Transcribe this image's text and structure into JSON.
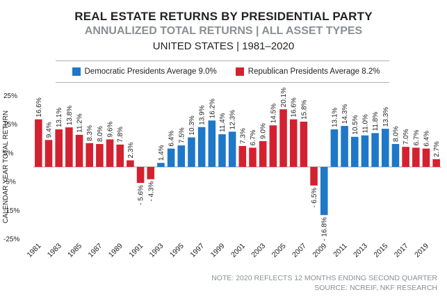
{
  "chart_data": {
    "type": "bar",
    "title": "REAL ESTATE RETURNS BY PRESIDENTIAL PARTY",
    "subtitle": "ANNUALIZED TOTAL RETURNS | ALL ASSET TYPES",
    "subtitle2": "UNITED STATES | 1981–2020",
    "ylabel": "CALENDAR YEAR TOTAL RETURN",
    "xlabel": "",
    "ylim": [
      -25,
      25
    ],
    "yticks": [
      25,
      15,
      5,
      -5,
      -15,
      -25
    ],
    "ytick_labels": [
      "25%",
      "15%",
      "5%",
      "-5%",
      "-15%",
      "-25%"
    ],
    "categories": [
      "1981",
      "1982",
      "1983",
      "1984",
      "1985",
      "1986",
      "1987",
      "1988",
      "1989",
      "1990",
      "1991",
      "1992",
      "1993",
      "1994",
      "1995",
      "1996",
      "1997",
      "1998",
      "1999",
      "2000",
      "2001",
      "2002",
      "2003",
      "2004",
      "2005",
      "2006",
      "2007",
      "2008",
      "2009",
      "2010",
      "2011",
      "2012",
      "2013",
      "2014",
      "2015",
      "2016",
      "2017",
      "2018",
      "2019",
      "2020"
    ],
    "xtick_labels": [
      "1981",
      "1983",
      "1985",
      "1987",
      "1989",
      "1991",
      "1993",
      "1995",
      "1997",
      "1999",
      "2001",
      "2003",
      "2005",
      "2007",
      "2009",
      "2011",
      "2013",
      "2015",
      "2017",
      "2019"
    ],
    "values": [
      16.6,
      9.4,
      13.1,
      13.8,
      11.2,
      8.3,
      8.0,
      9.6,
      7.8,
      2.3,
      -5.6,
      -4.3,
      1.4,
      6.4,
      7.5,
      10.3,
      13.9,
      16.2,
      11.4,
      12.3,
      7.3,
      6.7,
      9.0,
      14.5,
      20.1,
      16.6,
      15.8,
      -6.5,
      -16.8,
      13.1,
      14.3,
      10.5,
      11.0,
      11.8,
      13.3,
      8.0,
      7.0,
      6.7,
      6.4,
      2.7
    ],
    "value_labels": [
      "16.6%",
      "9.4%",
      "13.1%",
      "13.8%",
      "11.2%",
      "8.3%",
      "8.0%",
      "9.6%",
      "7.8%",
      "2.3%",
      "- 5.6%",
      "- 4.3%",
      "1.4%",
      "6.4%",
      "7.5%",
      "10.3%",
      "13.9%",
      "16.2%",
      "11.4%",
      "12.3%",
      "7.3%",
      "6.7%",
      "9.0%",
      "14.5%",
      "20.1%",
      "16.6%",
      "15.8%",
      "- 6.5%",
      "- 16.8%",
      "13.1%",
      "14.3%",
      "10.5%",
      "11.0%",
      "11.8%",
      "13.3%",
      "8.0%",
      "7.0%",
      "6.7%",
      "6.4%",
      "2.7%"
    ],
    "party": [
      "R",
      "R",
      "R",
      "R",
      "R",
      "R",
      "R",
      "R",
      "R",
      "R",
      "R",
      "R",
      "D",
      "D",
      "D",
      "D",
      "D",
      "D",
      "D",
      "D",
      "R",
      "R",
      "R",
      "R",
      "R",
      "R",
      "R",
      "R",
      "D",
      "D",
      "D",
      "D",
      "D",
      "D",
      "D",
      "D",
      "R",
      "R",
      "R",
      "R"
    ],
    "series": [
      {
        "name": "Democratic Presidents Average 9.0%",
        "key": "D",
        "color": "#1f77c8"
      },
      {
        "name": "Republican Presidents Average 8.2%",
        "key": "R",
        "color": "#d42130"
      }
    ]
  },
  "notes": {
    "line1": "NOTE: 2020 REFLECTS 12 MONTHS ENDING SECOND QUARTER",
    "line2": "SOURCE: NCREIF, NKF RESEARCH"
  }
}
